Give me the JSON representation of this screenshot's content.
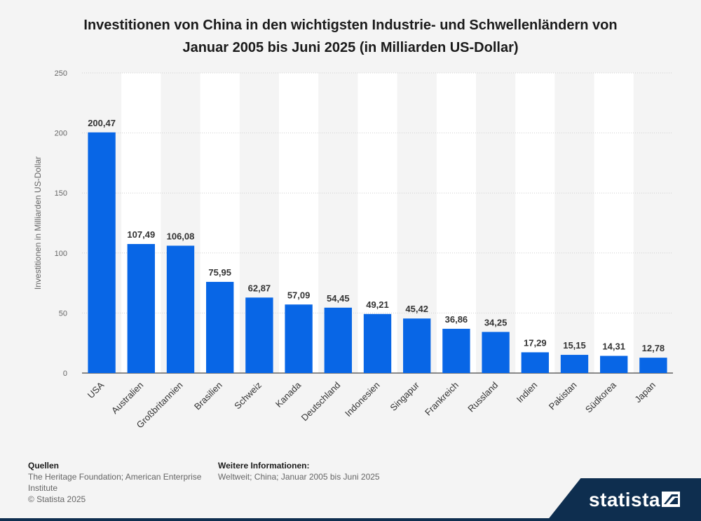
{
  "chart_data": {
    "type": "bar",
    "title": "Investitionen von China in den wichtigsten Industrie- und Schwellenländern von Januar 2005 bis Juni 2025 (in Milliarden US-Dollar)",
    "title_lines": [
      "Investitionen von China in den wichtigsten Industrie- und Schwellenländern von",
      "Januar 2005 bis Juni 2025 (in Milliarden US-Dollar)"
    ],
    "xlabel": "",
    "ylabel": "Investitionen in Milliarden US-Dollar",
    "ylim": [
      0,
      250
    ],
    "yticks": [
      0,
      50,
      100,
      150,
      200,
      250
    ],
    "categories": [
      "USA",
      "Australien",
      "Großbritannien",
      "Brasilien",
      "Schweiz",
      "Kanada",
      "Deutschland",
      "Indonesien",
      "Singapur",
      "Frankreich",
      "Russland",
      "Indien",
      "Pakistan",
      "Südkorea",
      "Japan"
    ],
    "values": [
      200.47,
      107.49,
      106.08,
      75.95,
      62.87,
      57.09,
      54.45,
      49.21,
      45.42,
      36.86,
      34.25,
      17.29,
      15.15,
      14.31,
      12.78
    ],
    "value_labels": [
      "200,47",
      "107,49",
      "106,08",
      "75,95",
      "62,87",
      "57,09",
      "54,45",
      "49,21",
      "45,42",
      "36,86",
      "34,25",
      "17,29",
      "15,15",
      "14,31",
      "12,78"
    ],
    "bar_color": "#0866e6",
    "grid": true
  },
  "footer": {
    "sources_heading": "Quellen",
    "sources_lines": [
      "The Heritage Foundation; American Enterprise",
      "Institute"
    ],
    "copyright": "© Statista 2025",
    "more_info_heading": "Weitere Informationen:",
    "more_info_text": "Weltweit; China; Januar 2005 bis Juni 2025"
  },
  "brand": {
    "name": "statista",
    "color": "#0e2e4f"
  }
}
